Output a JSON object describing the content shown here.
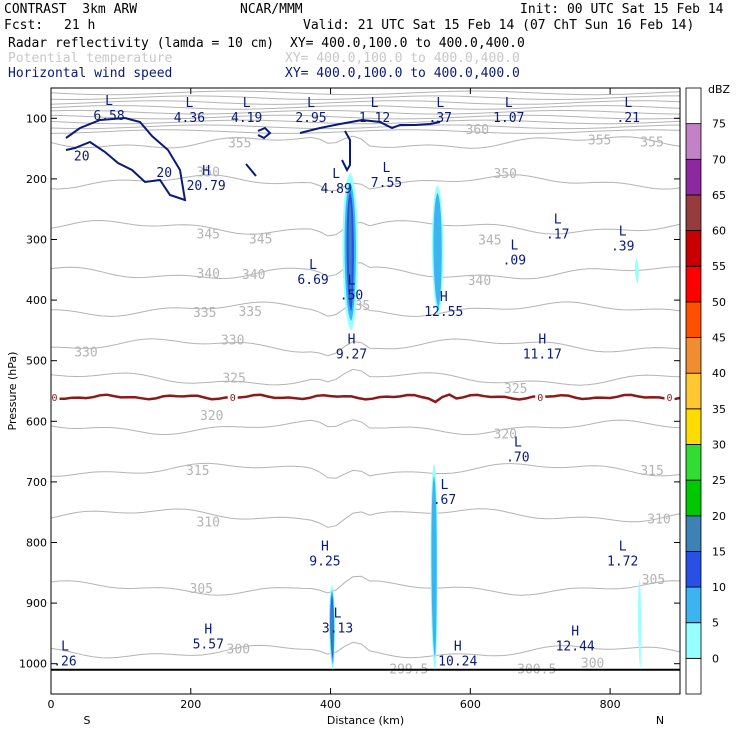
{
  "header": {
    "model": "CONTRAST  3km ARW",
    "org": "NCAR/MMM",
    "init": "Init: 00 UTC Sat 15 Feb 14",
    "fcst_label": "Fcst:",
    "fcst_value": "21 h",
    "valid": "Valid: 21 UTC Sat 15 Feb 14 (07 ChT Sun 16 Feb 14)",
    "fields": [
      {
        "name": "Radar reflectivity (lamda = 10 cm)",
        "xy": "XY= 400.0,100.0 to 400.0,400.0",
        "color": "#000000"
      },
      {
        "name": "Potential temperature",
        "xy": "XY= 400.0,100.0 to 400.0,400.0",
        "color": "#c8c8c8"
      },
      {
        "name": "Horizontal wind speed",
        "xy": "XY= 400.0,100.0 to 400.0,400.0",
        "color": "#0a1a7a"
      }
    ]
  },
  "colorbar": {
    "unit": "dBZ",
    "levels": [
      "0",
      "5",
      "10",
      "15",
      "20",
      "25",
      "30",
      "35",
      "40",
      "45",
      "50",
      "55",
      "60",
      "65",
      "70",
      "75"
    ],
    "colors": [
      "#ffffff",
      "#96ffff",
      "#3cb4f0",
      "#2850e6",
      "#3c82b4",
      "#00c800",
      "#32dc32",
      "#ffdc00",
      "#ffc832",
      "#f08c32",
      "#ff5000",
      "#ff0000",
      "#c80000",
      "#963c3c",
      "#8c28a0",
      "#c382c8",
      "#ffffff"
    ]
  },
  "chart_data": {
    "type": "vertical cross-section",
    "xlabel": "Distance (km)",
    "ylabel": "Pressure (hPa)",
    "xlim": [
      0,
      900
    ],
    "ylim": [
      1050,
      50
    ],
    "x_ticks": [
      "0",
      "200",
      "400",
      "600",
      "800"
    ],
    "y_ticks": [
      "100",
      "200",
      "300",
      "400",
      "500",
      "600",
      "700",
      "800",
      "900",
      "1000"
    ],
    "x_end_labels": {
      "left": "S",
      "right": "N"
    },
    "theta_contours": [
      {
        "label": "355",
        "p": 140
      },
      {
        "label": "350",
        "p": 205
      },
      {
        "label": "345",
        "p": 280
      },
      {
        "label": "340",
        "p": 355
      },
      {
        "label": "335",
        "p": 415
      },
      {
        "label": "330",
        "p": 475
      },
      {
        "label": "325",
        "p": 530
      },
      {
        "label": "320",
        "p": 610
      },
      {
        "label": "315",
        "p": 680
      },
      {
        "label": "310",
        "p": 755
      },
      {
        "label": "305",
        "p": 875
      },
      {
        "label": "300",
        "p": 980
      }
    ],
    "theta_labels": [
      {
        "text": "360",
        "x": 610,
        "p": 118
      },
      {
        "text": "355",
        "x": 270,
        "p": 140
      },
      {
        "text": "355",
        "x": 785,
        "p": 135
      },
      {
        "text": "355",
        "x": 860,
        "p": 138
      },
      {
        "text": "350",
        "x": 225,
        "p": 188
      },
      {
        "text": "350",
        "x": 650,
        "p": 190
      },
      {
        "text": "345",
        "x": 225,
        "p": 290
      },
      {
        "text": "345",
        "x": 300,
        "p": 298
      },
      {
        "text": "345",
        "x": 628,
        "p": 300
      },
      {
        "text": "340",
        "x": 225,
        "p": 355
      },
      {
        "text": "340",
        "x": 290,
        "p": 357
      },
      {
        "text": "340",
        "x": 613,
        "p": 367
      },
      {
        "text": "335",
        "x": 220,
        "p": 420
      },
      {
        "text": "335",
        "x": 285,
        "p": 418
      },
      {
        "text": "335",
        "x": 440,
        "p": 408
      },
      {
        "text": "330",
        "x": 50,
        "p": 485
      },
      {
        "text": "330",
        "x": 260,
        "p": 465
      },
      {
        "text": "325",
        "x": 262,
        "p": 528
      },
      {
        "text": "325",
        "x": 665,
        "p": 545
      },
      {
        "text": "320",
        "x": 230,
        "p": 590
      },
      {
        "text": "320",
        "x": 650,
        "p": 620
      },
      {
        "text": "315",
        "x": 210,
        "p": 680
      },
      {
        "text": "315",
        "x": 860,
        "p": 680
      },
      {
        "text": "310",
        "x": 225,
        "p": 765
      },
      {
        "text": "310",
        "x": 870,
        "p": 760
      },
      {
        "text": "305",
        "x": 215,
        "p": 875
      },
      {
        "text": "305",
        "x": 862,
        "p": 860
      },
      {
        "text": "300",
        "x": 268,
        "p": 975
      },
      {
        "text": "299.5",
        "x": 512,
        "p": 1008
      },
      {
        "text": "300.5",
        "x": 695,
        "p": 1008
      },
      {
        "text": "300",
        "x": 775,
        "p": 998
      }
    ],
    "freezing_level": {
      "label": "0",
      "p": 560
    },
    "wind_contour_label": "20",
    "wind_extrema": [
      {
        "type": "L",
        "value": "6.58",
        "x": 83,
        "p": 85
      },
      {
        "type": "L",
        "value": "4.36",
        "x": 198,
        "p": 88
      },
      {
        "type": "L",
        "value": "4.19",
        "x": 280,
        "p": 88
      },
      {
        "type": "L",
        "value": "2.95",
        "x": 372,
        "p": 88
      },
      {
        "type": "L",
        "value": "1.12",
        "x": 463,
        "p": 88
      },
      {
        "type": "L",
        "value": ".37",
        "x": 557,
        "p": 88
      },
      {
        "type": "L",
        "value": "1.07",
        "x": 655,
        "p": 88
      },
      {
        "type": "L",
        "value": ".21",
        "x": 826,
        "p": 88
      },
      {
        "type": "H",
        "value": "20.79",
        "x": 222,
        "p": 200
      },
      {
        "type": "L",
        "value": "4.89",
        "x": 408,
        "p": 205
      },
      {
        "type": "L",
        "value": "7.55",
        "x": 480,
        "p": 195
      },
      {
        "type": "L",
        "value": ".17",
        "x": 725,
        "p": 280
      },
      {
        "type": "L",
        "value": ".39",
        "x": 818,
        "p": 300
      },
      {
        "type": "L",
        "value": ".09",
        "x": 663,
        "p": 323
      },
      {
        "type": "L",
        "value": "6.69",
        "x": 375,
        "p": 355
      },
      {
        "type": "L",
        "value": ".50",
        "x": 430,
        "p": 381
      },
      {
        "type": "H",
        "value": "12.55",
        "x": 562,
        "p": 408
      },
      {
        "type": "H",
        "value": "9.27",
        "x": 430,
        "p": 478
      },
      {
        "type": "H",
        "value": "11.17",
        "x": 703,
        "p": 478
      },
      {
        "type": "L",
        "value": ".70",
        "x": 668,
        "p": 648
      },
      {
        "type": "L",
        "value": ".67",
        "x": 563,
        "p": 718
      },
      {
        "type": "H",
        "value": "9.25",
        "x": 392,
        "p": 820
      },
      {
        "type": "L",
        "value": "1.72",
        "x": 818,
        "p": 820
      },
      {
        "type": "L",
        "value": "3.13",
        "x": 410,
        "p": 930
      },
      {
        "type": "H",
        "value": "5.57",
        "x": 225,
        "p": 957
      },
      {
        "type": "H",
        "value": "12.44",
        "x": 750,
        "p": 960
      },
      {
        "type": "L",
        "value": ".26",
        "x": 20,
        "p": 985
      },
      {
        "type": "H",
        "value": "10.24",
        "x": 582,
        "p": 985
      }
    ],
    "reflectivity_cells": [
      {
        "x": 428,
        "p_top": 190,
        "p_bot": 450,
        "halfwidth_km": 14,
        "max_dbz": 20
      },
      {
        "x": 553,
        "p_top": 210,
        "p_bot": 425,
        "halfwidth_km": 10,
        "max_dbz": 10
      },
      {
        "x": 838,
        "p_top": 330,
        "p_bot": 375,
        "halfwidth_km": 3,
        "max_dbz": 5
      },
      {
        "x": 402,
        "p_top": 870,
        "p_bot": 1010,
        "halfwidth_km": 5,
        "max_dbz": 20
      },
      {
        "x": 548,
        "p_top": 670,
        "p_bot": 1010,
        "halfwidth_km": 6,
        "max_dbz": 10
      },
      {
        "x": 842,
        "p_top": 860,
        "p_bot": 1010,
        "halfwidth_km": 2,
        "max_dbz": 5
      }
    ]
  }
}
